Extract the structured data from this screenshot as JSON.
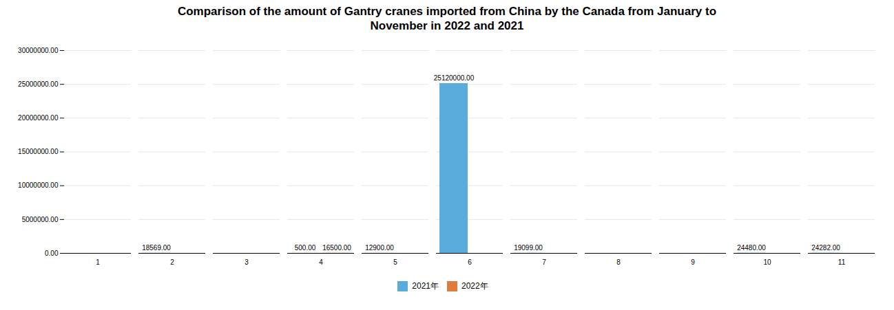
{
  "chart_data": {
    "type": "bar",
    "title": "Comparison of the amount of Gantry cranes imported from China by the Canada from January to\nNovember in 2022 and 2021",
    "categories": [
      "1",
      "2",
      "3",
      "4",
      "5",
      "6",
      "7",
      "8",
      "9",
      "10",
      "11"
    ],
    "series": [
      {
        "name": "2021年",
        "color": "#5aacdc",
        "values": [
          0,
          18569,
          0,
          500,
          12900,
          25120000,
          19099,
          0,
          0,
          24480,
          24282
        ],
        "value_labels": [
          null,
          "18569.00",
          null,
          "500.00",
          "12900.00",
          "25120000.00",
          "19099.00",
          null,
          null,
          "24480.00",
          "24282.00"
        ]
      },
      {
        "name": "2022年",
        "color": "#e07b39",
        "values": [
          0,
          0,
          0,
          16500,
          0,
          0,
          0,
          0,
          0,
          0,
          0
        ],
        "value_labels": [
          null,
          null,
          null,
          "16500.00",
          null,
          null,
          null,
          null,
          null,
          null,
          null
        ]
      }
    ],
    "ylim": [
      0,
      30000000
    ],
    "yticks": [
      {
        "value": 0,
        "label": "0.00"
      },
      {
        "value": 5000000,
        "label": "5000000.00"
      },
      {
        "value": 10000000,
        "label": "10000000.00"
      },
      {
        "value": 15000000,
        "label": "15000000.00"
      },
      {
        "value": 20000000,
        "label": "20000000.00"
      },
      {
        "value": 25000000,
        "label": "25000000.00"
      },
      {
        "value": 30000000,
        "label": "30000000.00"
      }
    ],
    "grid": true,
    "data_labels": true,
    "legend": "bottom"
  }
}
